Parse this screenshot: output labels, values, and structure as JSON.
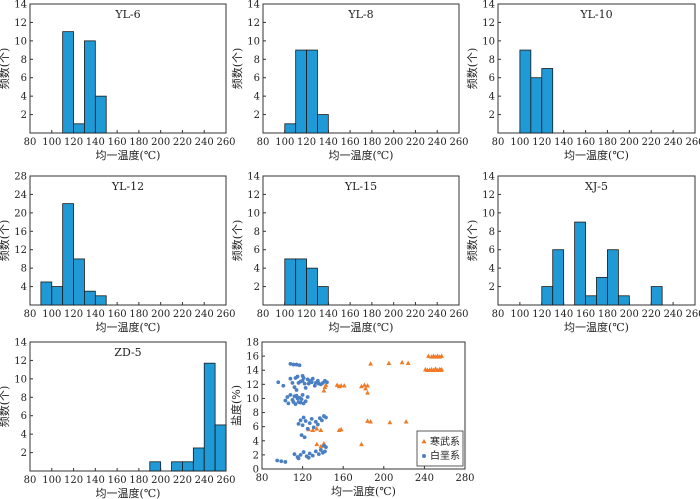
{
  "figure": {
    "ylabel": "频数(个)",
    "xlabel": "均一温度(℃)"
  },
  "colors": {
    "bar": "#1f9ad6",
    "bar_stroke": "#1a1a1a",
    "axis": "#333333",
    "cambrian": "#f07a26",
    "ordovician": "#4a7fc1"
  },
  "chart_data": [
    {
      "type": "bar",
      "title": "YL-6",
      "xlabel": "均一温度(℃)",
      "ylabel": "频数(个)",
      "xlim": [
        80,
        260
      ],
      "ylim": [
        0,
        14
      ],
      "xticks": [
        80,
        100,
        120,
        140,
        160,
        180,
        200,
        220,
        240,
        260
      ],
      "yticks": [
        2,
        4,
        6,
        8,
        10,
        12,
        14
      ],
      "bin_width": 10,
      "bins": [
        {
          "start": 110,
          "value": 11
        },
        {
          "start": 120,
          "value": 1
        },
        {
          "start": 130,
          "value": 10
        },
        {
          "start": 140,
          "value": 4
        }
      ]
    },
    {
      "type": "bar",
      "title": "YL-8",
      "xlabel": "均一温度(℃)",
      "ylabel": "频数(个)",
      "xlim": [
        80,
        260
      ],
      "ylim": [
        0,
        14
      ],
      "xticks": [
        80,
        100,
        120,
        140,
        160,
        180,
        200,
        220,
        240,
        260
      ],
      "yticks": [
        2,
        4,
        6,
        8,
        10,
        12,
        14
      ],
      "bin_width": 10,
      "bins": [
        {
          "start": 100,
          "value": 1
        },
        {
          "start": 110,
          "value": 9
        },
        {
          "start": 120,
          "value": 9
        },
        {
          "start": 130,
          "value": 2
        }
      ]
    },
    {
      "type": "bar",
      "title": "YL-10",
      "xlabel": "均一温度(℃)",
      "ylabel": "频数(个)",
      "xlim": [
        80,
        260
      ],
      "ylim": [
        0,
        14
      ],
      "xticks": [
        80,
        100,
        120,
        140,
        160,
        180,
        200,
        220,
        240,
        260
      ],
      "yticks": [
        2,
        4,
        6,
        8,
        10,
        12,
        14
      ],
      "bin_width": 10,
      "bins": [
        {
          "start": 100,
          "value": 9
        },
        {
          "start": 110,
          "value": 6
        },
        {
          "start": 120,
          "value": 7
        }
      ]
    },
    {
      "type": "bar",
      "title": "YL-12",
      "xlabel": "均一温度(℃)",
      "ylabel": "频数(个)",
      "xlim": [
        80,
        260
      ],
      "ylim": [
        0,
        28
      ],
      "xticks": [
        80,
        100,
        120,
        140,
        160,
        180,
        200,
        220,
        240,
        260
      ],
      "yticks": [
        4,
        8,
        12,
        16,
        20,
        24,
        28
      ],
      "bin_width": 10,
      "bins": [
        {
          "start": 90,
          "value": 5
        },
        {
          "start": 100,
          "value": 4
        },
        {
          "start": 110,
          "value": 22
        },
        {
          "start": 120,
          "value": 10
        },
        {
          "start": 130,
          "value": 3
        },
        {
          "start": 140,
          "value": 2
        }
      ]
    },
    {
      "type": "bar",
      "title": "YL-15",
      "xlabel": "均一温度(℃)",
      "ylabel": "频数(个)",
      "xlim": [
        80,
        260
      ],
      "ylim": [
        0,
        14
      ],
      "xticks": [
        80,
        100,
        120,
        140,
        160,
        180,
        200,
        220,
        240,
        260
      ],
      "yticks": [
        2,
        4,
        6,
        8,
        10,
        12,
        14
      ],
      "bin_width": 10,
      "bins": [
        {
          "start": 100,
          "value": 5
        },
        {
          "start": 110,
          "value": 5
        },
        {
          "start": 120,
          "value": 4
        },
        {
          "start": 130,
          "value": 2
        }
      ]
    },
    {
      "type": "bar",
      "title": "XJ-5",
      "xlabel": "均一温度(℃)",
      "ylabel": "频数(个)",
      "xlim": [
        80,
        260
      ],
      "ylim": [
        0,
        14
      ],
      "xticks": [
        80,
        100,
        120,
        140,
        160,
        180,
        200,
        220,
        240,
        260
      ],
      "yticks": [
        2,
        4,
        6,
        8,
        10,
        12,
        14
      ],
      "bin_width": 10,
      "bins": [
        {
          "start": 120,
          "value": 2
        },
        {
          "start": 130,
          "value": 6
        },
        {
          "start": 150,
          "value": 9
        },
        {
          "start": 160,
          "value": 1
        },
        {
          "start": 170,
          "value": 3
        },
        {
          "start": 180,
          "value": 6
        },
        {
          "start": 190,
          "value": 1
        },
        {
          "start": 220,
          "value": 2
        }
      ]
    },
    {
      "type": "bar",
      "title": "ZD-5",
      "xlabel": "均一温度(℃)",
      "ylabel": "频数(个)",
      "xlim": [
        80,
        260
      ],
      "ylim": [
        0,
        14
      ],
      "xticks": [
        80,
        100,
        120,
        140,
        160,
        180,
        200,
        220,
        240,
        260
      ],
      "yticks": [
        2,
        4,
        6,
        8,
        10,
        12,
        14
      ],
      "bin_width": 10,
      "bins": [
        {
          "start": 190,
          "value": 1
        },
        {
          "start": 210,
          "value": 1
        },
        {
          "start": 220,
          "value": 1
        },
        {
          "start": 230,
          "value": 2.5
        },
        {
          "start": 240,
          "value": 11.7
        },
        {
          "start": 250,
          "value": 5
        }
      ]
    },
    {
      "type": "scatter",
      "title": "",
      "xlabel": "均一温度(℃)",
      "ylabel": "盐度(%)",
      "xlim": [
        80,
        280
      ],
      "ylim": [
        0,
        18
      ],
      "xticks": [
        80,
        120,
        160,
        200,
        240,
        280
      ],
      "yticks": [
        0,
        2,
        4,
        6,
        8,
        10,
        12,
        14,
        16,
        18
      ],
      "legend": {
        "position": "bottom-right"
      },
      "series": [
        {
          "name": "寒武系",
          "marker": "triangle",
          "points": [
            [
              141,
              11.1
            ],
            [
              142,
              11.6
            ],
            [
              143,
              11.9
            ],
            [
              154,
              11.9
            ],
            [
              156,
              11.7
            ],
            [
              158,
              11.8
            ],
            [
              161,
              11.8
            ],
            [
              178,
              11.7
            ],
            [
              181,
              11.9
            ],
            [
              182,
              11.4
            ],
            [
              184,
              11.8
            ],
            [
              184,
              10.8
            ],
            [
              187,
              14.9
            ],
            [
              205,
              15
            ],
            [
              218,
              15.1
            ],
            [
              224,
              15
            ],
            [
              241,
              14.1
            ],
            [
              243,
              14
            ],
            [
              245,
              14
            ],
            [
              247,
              14.1
            ],
            [
              249,
              14
            ],
            [
              251,
              14.2
            ],
            [
              253,
              14
            ],
            [
              255,
              14.1
            ],
            [
              256,
              14
            ],
            [
              257,
              14.1
            ],
            [
              244,
              16
            ],
            [
              247,
              15.9
            ],
            [
              249,
              16
            ],
            [
              251,
              15.9
            ],
            [
              253,
              16
            ],
            [
              255,
              15.9
            ],
            [
              257,
              16
            ],
            [
              126,
              5.6
            ],
            [
              130,
              5.5
            ],
            [
              134,
              5.7
            ],
            [
              138,
              5.5
            ],
            [
              156,
              5.5
            ],
            [
              158,
              5.6
            ],
            [
              184,
              6.8
            ],
            [
              187,
              6.7
            ],
            [
              206,
              6.6
            ],
            [
              222,
              6.7
            ],
            [
              178,
              3.5
            ],
            [
              134,
              3.5
            ],
            [
              138,
              3.2
            ],
            [
              141,
              3.6
            ]
          ]
        },
        {
          "name": "白垩系",
          "marker": "circle",
          "points": [
            [
              95,
              1.2
            ],
            [
              99,
              1.1
            ],
            [
              103,
              1
            ],
            [
              108,
              12.8
            ],
            [
              110,
              12.2
            ],
            [
              112,
              11.6
            ],
            [
              113,
              12.9
            ],
            [
              114,
              11.2
            ],
            [
              115,
              13.1
            ],
            [
              116,
              12.2
            ],
            [
              118,
              12.4
            ],
            [
              120,
              12.5
            ],
            [
              121,
              12.9
            ],
            [
              122,
              12.1
            ],
            [
              123,
              11.5
            ],
            [
              125,
              12.7
            ],
            [
              126,
              12.1
            ],
            [
              127,
              12.5
            ],
            [
              129,
              12.3
            ],
            [
              130,
              12.8
            ],
            [
              132,
              11.8
            ],
            [
              133,
              12.2
            ],
            [
              135,
              12.5
            ],
            [
              136,
              12.1
            ],
            [
              138,
              12
            ],
            [
              140,
              12.2
            ],
            [
              142,
              12.5
            ],
            [
              144,
              12.3
            ],
            [
              96,
              12.3
            ],
            [
              101,
              11.8
            ],
            [
              108,
              14.9
            ],
            [
              111,
              14.8
            ],
            [
              114,
              14.8
            ],
            [
              117,
              14.7
            ],
            [
              120,
              13.2
            ],
            [
              108,
              10.5
            ],
            [
              110,
              9.8
            ],
            [
              111,
              9.5
            ],
            [
              112,
              10.3
            ],
            [
              113,
              9.2
            ],
            [
              114,
              10.4
            ],
            [
              115,
              10
            ],
            [
              116,
              9.5
            ],
            [
              117,
              10.1
            ],
            [
              118,
              9.4
            ],
            [
              119,
              9.9
            ],
            [
              120,
              10.5
            ],
            [
              121,
              9.3
            ],
            [
              123,
              9.6
            ],
            [
              125,
              10.2
            ],
            [
              103,
              9.7
            ],
            [
              105,
              10.2
            ],
            [
              106,
              9.3
            ],
            [
              116,
              6.4
            ],
            [
              118,
              6.9
            ],
            [
              120,
              6.2
            ],
            [
              121,
              7.3
            ],
            [
              123,
              6.8
            ],
            [
              125,
              5.7
            ],
            [
              127,
              6.5
            ],
            [
              129,
              7.1
            ],
            [
              131,
              5.9
            ],
            [
              133,
              6.7
            ],
            [
              135,
              6.3
            ],
            [
              137,
              7.2
            ],
            [
              139,
              6.9
            ],
            [
              141,
              7.5
            ],
            [
              143,
              7.3
            ],
            [
              119,
              4.8
            ],
            [
              122,
              4.5
            ],
            [
              112,
              2.1
            ],
            [
              115,
              1.7
            ],
            [
              118,
              2
            ],
            [
              121,
              2.4
            ],
            [
              124,
              1.8
            ],
            [
              127,
              2.2
            ],
            [
              130,
              1.9
            ],
            [
              133,
              2.5
            ],
            [
              136,
              2.1
            ],
            [
              138,
              2.7
            ],
            [
              140,
              2.3
            ],
            [
              142,
              2.5
            ],
            [
              116,
              1.5
            ],
            [
              126,
              1.6
            ],
            [
              141,
              3.3
            ],
            [
              143,
              3.1
            ]
          ]
        }
      ]
    }
  ]
}
